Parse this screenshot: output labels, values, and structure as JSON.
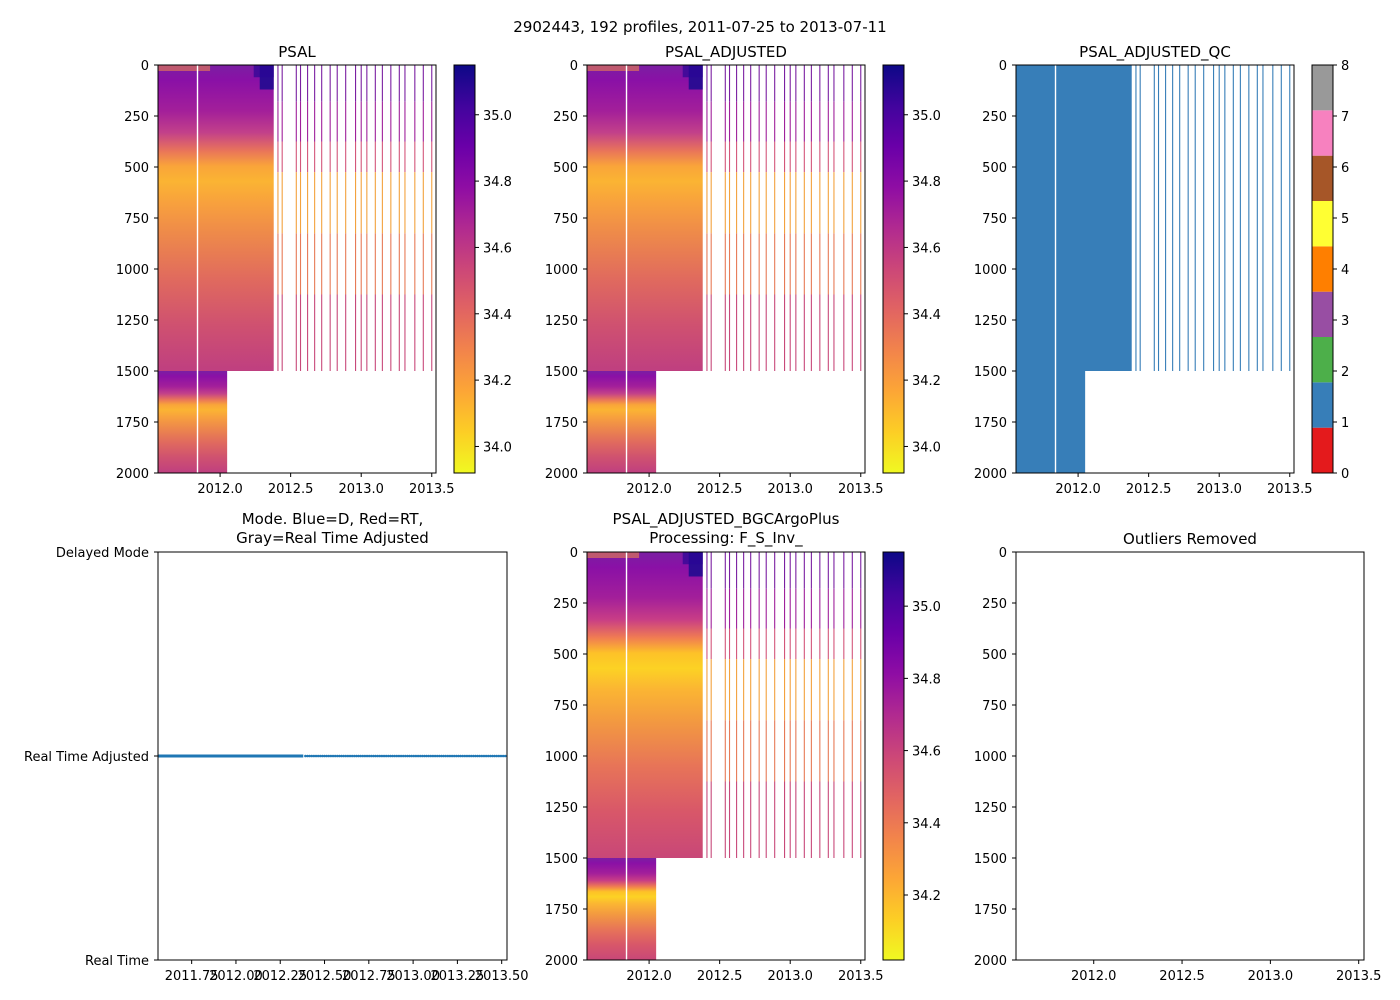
{
  "suptitle": "2902443, 192 profiles, 2011-07-25 to 2013-07-11",
  "chart_data": [
    {
      "id": "psal",
      "type": "heatmap",
      "title": "PSAL",
      "xlim": [
        2011.56,
        2013.53
      ],
      "xticks": [
        2012.0,
        2012.5,
        2013.0,
        2013.5
      ],
      "ylim": [
        2000,
        0
      ],
      "yticks": [
        0,
        250,
        500,
        750,
        1000,
        1250,
        1500,
        1750,
        2000
      ],
      "colormap": "plasma_r",
      "clim": [
        33.92,
        35.15
      ],
      "colorbar_ticks": [
        34.0,
        34.2,
        34.4,
        34.6,
        34.8,
        35.0
      ],
      "dense_data_end": 2012.38,
      "deep_profiles_end": 2012.05,
      "shallow_max_depth": 1500,
      "gap_at": 2011.84,
      "sparse_profile_times": [
        2012.41,
        2012.44,
        2012.54,
        2012.57,
        2012.62,
        2012.67,
        2012.72,
        2012.78,
        2012.83,
        2012.89,
        2012.96,
        2013.0,
        2013.04,
        2013.1,
        2013.15,
        2013.21,
        2013.27,
        2013.31,
        2013.38,
        2013.44,
        2013.5
      ]
    },
    {
      "id": "psal_adjusted",
      "type": "heatmap",
      "title": "PSAL_ADJUSTED",
      "xlim": [
        2011.56,
        2013.53
      ],
      "xticks": [
        2012.0,
        2012.5,
        2013.0,
        2013.5
      ],
      "ylim": [
        2000,
        0
      ],
      "yticks": [
        0,
        250,
        500,
        750,
        1000,
        1250,
        1500,
        1750,
        2000
      ],
      "colormap": "plasma_r",
      "clim": [
        33.92,
        35.15
      ],
      "colorbar_ticks": [
        34.0,
        34.2,
        34.4,
        34.6,
        34.8,
        35.0
      ],
      "dense_data_end": 2012.38,
      "deep_profiles_end": 2012.05,
      "shallow_max_depth": 1500,
      "gap_at": 2011.84,
      "sparse_profile_times": [
        2012.41,
        2012.44,
        2012.54,
        2012.57,
        2012.62,
        2012.67,
        2012.72,
        2012.78,
        2012.83,
        2012.89,
        2012.96,
        2013.0,
        2013.04,
        2013.1,
        2013.15,
        2013.21,
        2013.27,
        2013.31,
        2013.38,
        2013.44,
        2013.5
      ]
    },
    {
      "id": "psal_adjusted_qc",
      "type": "heatmap",
      "title": "PSAL_ADJUSTED_QC",
      "xlim": [
        2011.56,
        2013.53
      ],
      "xticks": [
        2012.0,
        2012.5,
        2013.0,
        2013.5
      ],
      "ylim": [
        2000,
        0
      ],
      "yticks": [
        0,
        250,
        500,
        750,
        1000,
        1250,
        1500,
        1750,
        2000
      ],
      "qc_value": 1,
      "qc_color": "#377eb8",
      "colorbar_ticks": [
        0,
        1,
        2,
        3,
        4,
        5,
        6,
        7,
        8
      ],
      "qc_colors": [
        "#e41a1c",
        "#377eb8",
        "#4daf4a",
        "#984ea3",
        "#ff7f00",
        "#ffff33",
        "#a65628",
        "#f781bf",
        "#999999"
      ],
      "dense_data_end": 2012.38,
      "deep_profiles_end": 2012.05,
      "shallow_max_depth": 1500,
      "gap_at": 2011.84,
      "sparse_profile_times": [
        2012.41,
        2012.44,
        2012.54,
        2012.57,
        2012.62,
        2012.67,
        2012.72,
        2012.78,
        2012.83,
        2012.89,
        2012.96,
        2013.0,
        2013.04,
        2013.1,
        2013.15,
        2013.21,
        2013.27,
        2013.31,
        2013.38,
        2013.44,
        2013.5
      ]
    },
    {
      "id": "mode",
      "type": "scatter",
      "title_line1": "Mode. Blue=D, Red=RT,",
      "title_line2": "Gray=Real Time Adjusted",
      "xlim": [
        2011.56,
        2013.53
      ],
      "xticks": [
        2011.75,
        2012.0,
        2012.25,
        2012.5,
        2012.75,
        2013.0,
        2013.25,
        2013.5
      ],
      "xtick_labels": [
        "2011.75",
        "2012.00",
        "2012.25",
        "2012.50",
        "2012.75",
        "2013.00",
        "2013.25",
        "2013.50"
      ],
      "ylim": [
        0,
        2
      ],
      "yticks": [
        0,
        1,
        2
      ],
      "ytick_labels": [
        "Real Time",
        "Real Time Adjusted",
        "Delayed Mode"
      ],
      "series_color": "#1f77b4",
      "mode_value": 1,
      "dense_end": 2012.38,
      "dotted_spacing": 0.012
    },
    {
      "id": "bgcargoplus",
      "type": "heatmap",
      "title_line1": "PSAL_ADJUSTED_BGCArgoPlus",
      "title_line2": "Processing: F_S_Inv_",
      "xlim": [
        2011.56,
        2013.53
      ],
      "xticks": [
        2012.0,
        2012.5,
        2013.0,
        2013.5
      ],
      "ylim": [
        2000,
        0
      ],
      "yticks": [
        0,
        250,
        500,
        750,
        1000,
        1250,
        1500,
        1750,
        2000
      ],
      "colormap": "plasma_r",
      "clim": [
        34.02,
        35.15
      ],
      "colorbar_ticks": [
        34.2,
        34.4,
        34.6,
        34.8,
        35.0
      ],
      "dense_data_end": 2012.38,
      "deep_profiles_end": 2012.05,
      "shallow_max_depth": 1500,
      "gap_at": 2011.84,
      "sparse_profile_times": [
        2012.41,
        2012.44,
        2012.54,
        2012.57,
        2012.62,
        2012.67,
        2012.72,
        2012.78,
        2012.83,
        2012.89,
        2012.96,
        2013.0,
        2013.04,
        2013.1,
        2013.15,
        2013.21,
        2013.27,
        2013.31,
        2013.38,
        2013.44,
        2013.5
      ]
    },
    {
      "id": "outliers",
      "type": "scatter",
      "title": "Outliers Removed",
      "xlim": [
        2011.56,
        2013.53
      ],
      "xticks": [
        2012.0,
        2012.5,
        2013.0,
        2013.5
      ],
      "ylim": [
        2000,
        0
      ],
      "yticks": [
        0,
        250,
        500,
        750,
        1000,
        1250,
        1500,
        1750,
        2000
      ],
      "points": []
    }
  ]
}
